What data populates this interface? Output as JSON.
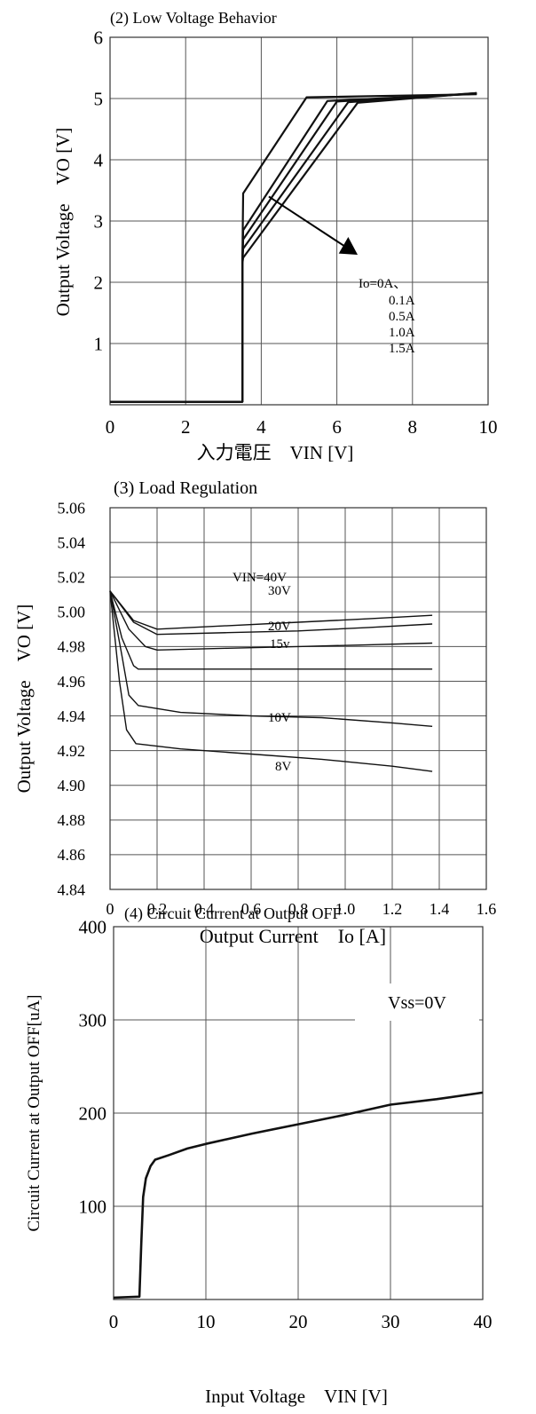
{
  "chart_data": [
    {
      "type": "line",
      "title": "(2) Low Voltage Behavior",
      "xlabel": "入力電圧　VIN [V]",
      "ylabel": "Output Voltage　VO [V]",
      "xlim": [
        0,
        10
      ],
      "ylim": [
        0,
        6
      ],
      "x_ticks": [
        "0",
        "2",
        "4",
        "6",
        "8",
        "10"
      ],
      "y_ticks": [
        "1",
        "2",
        "3",
        "4",
        "5",
        "6"
      ],
      "grid": true,
      "annotation": [
        "Io=0A、",
        "0.1A",
        "0.5A",
        "1.0A",
        "1.5A"
      ],
      "series": [
        {
          "name": "0A",
          "x": [
            0,
            3.5,
            3.5,
            3.52,
            5.2,
            9.7
          ],
          "y": [
            0.05,
            0.05,
            2.3,
            3.45,
            5.02,
            5.07
          ]
        },
        {
          "name": "0.1A",
          "x": [
            0,
            3.5,
            3.5,
            3.52,
            5.75,
            9.7
          ],
          "y": [
            0.05,
            0.05,
            2.3,
            2.85,
            4.96,
            5.08
          ]
        },
        {
          "name": "0.5A",
          "x": [
            0,
            3.5,
            3.5,
            3.52,
            6.0,
            9.7
          ],
          "y": [
            0.05,
            0.05,
            2.3,
            2.7,
            4.95,
            5.08
          ]
        },
        {
          "name": "1.0A",
          "x": [
            0,
            3.5,
            3.5,
            3.52,
            6.3,
            9.7
          ],
          "y": [
            0.05,
            0.05,
            2.3,
            2.55,
            4.94,
            5.09
          ]
        },
        {
          "name": "1.5A",
          "x": [
            0,
            3.5,
            3.5,
            3.52,
            6.55,
            9.7
          ],
          "y": [
            0.05,
            0.05,
            2.3,
            2.4,
            4.93,
            5.09
          ]
        }
      ]
    },
    {
      "type": "line",
      "title": "(3) Load Regulation",
      "xlabel": "Output Current　Io [A]",
      "ylabel": "Output Voltage　VO [V]",
      "xlim": [
        0,
        1.6
      ],
      "ylim": [
        4.84,
        5.06
      ],
      "x_ticks": [
        "0",
        "0.2",
        "0.4",
        "0.6",
        "0.8",
        "1.0",
        "1.2",
        "1.4",
        "1.6"
      ],
      "y_ticks": [
        "4.84",
        "4.86",
        "4.88",
        "4.90",
        "4.92",
        "4.94",
        "4.96",
        "4.98",
        "5.00",
        "5.02",
        "5.04",
        "5.06"
      ],
      "grid": true,
      "series": [
        {
          "name": "VIN=40V",
          "x": [
            0,
            0.1,
            0.2,
            0.5,
            0.8,
            1.1,
            1.37
          ],
          "y": [
            5.012,
            4.995,
            4.99,
            4.992,
            4.994,
            4.996,
            4.998
          ]
        },
        {
          "name": "30V",
          "x": [
            0,
            0.1,
            0.2,
            0.5,
            0.8,
            1.1,
            1.37
          ],
          "y": [
            5.012,
            4.994,
            4.987,
            4.988,
            4.989,
            4.991,
            4.993
          ]
        },
        {
          "name": "20V",
          "x": [
            0,
            0.08,
            0.15,
            0.2,
            0.5,
            0.8,
            1.1,
            1.37
          ],
          "y": [
            5.012,
            4.99,
            4.98,
            4.978,
            4.979,
            4.98,
            4.981,
            4.982
          ]
        },
        {
          "name": "15v",
          "x": [
            0,
            0.05,
            0.1,
            0.12,
            0.3,
            0.6,
            0.9,
            1.2,
            1.37
          ],
          "y": [
            5.012,
            4.985,
            4.969,
            4.967,
            4.967,
            4.967,
            4.967,
            4.967,
            4.967
          ]
        },
        {
          "name": "10V",
          "x": [
            0,
            0.05,
            0.08,
            0.12,
            0.3,
            0.6,
            0.9,
            1.2,
            1.37
          ],
          "y": [
            5.012,
            4.975,
            4.952,
            4.946,
            4.942,
            4.94,
            4.939,
            4.936,
            4.934
          ]
        },
        {
          "name": "8V",
          "x": [
            0,
            0.04,
            0.07,
            0.11,
            0.3,
            0.6,
            0.9,
            1.2,
            1.37
          ],
          "y": [
            5.012,
            4.96,
            4.932,
            4.924,
            4.921,
            4.918,
            4.915,
            4.911,
            4.908
          ]
        }
      ],
      "labels": [
        "VIN=40V",
        "30V",
        "20V",
        "15v",
        "10V",
        "8V"
      ]
    },
    {
      "type": "line",
      "title": "(4) Circuit Current at Output OFF",
      "xlabel": "Input Voltage　VIN [V]",
      "ylabel": "Circuit Current at Output OFF[uA]",
      "xlim": [
        0,
        40
      ],
      "ylim": [
        0,
        400
      ],
      "x_ticks": [
        "0",
        "10",
        "20",
        "30",
        "40"
      ],
      "y_ticks": [
        "100",
        "200",
        "300",
        "400"
      ],
      "grid": true,
      "annotation": "Vss=0V",
      "series": [
        {
          "name": "",
          "x": [
            0,
            2.8,
            3.0,
            3.2,
            3.5,
            4.0,
            4.5,
            6,
            8,
            10,
            15,
            20,
            25,
            30,
            35,
            40
          ],
          "y": [
            2,
            3,
            60,
            110,
            130,
            143,
            150,
            155,
            162,
            167,
            178,
            188,
            198,
            209,
            215,
            222
          ]
        }
      ]
    }
  ]
}
